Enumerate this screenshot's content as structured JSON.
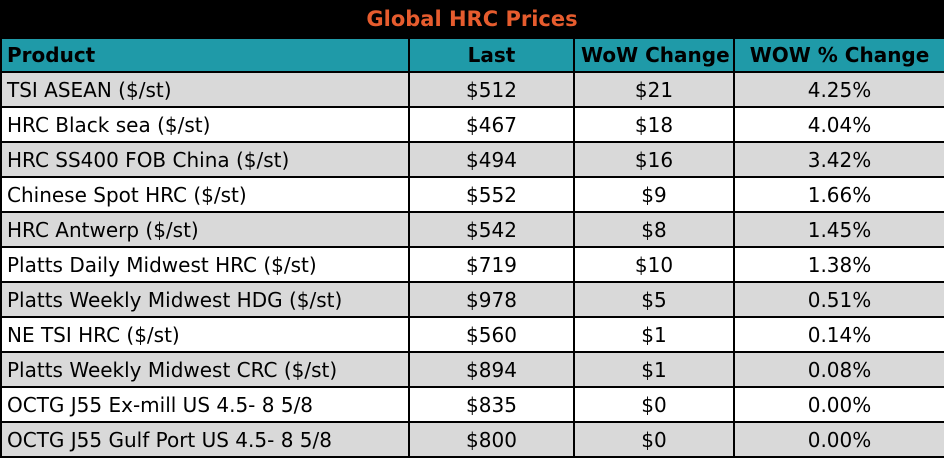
{
  "table": {
    "title": "Global HRC Prices",
    "headers": [
      "Product",
      "Last",
      "WoW Change",
      "WOW % Change"
    ],
    "rows": [
      [
        "TSI ASEAN ($/st)",
        "$512",
        "$21",
        "4.25%"
      ],
      [
        "HRC Black sea ($/st)",
        "$467",
        "$18",
        "4.04%"
      ],
      [
        "HRC SS400 FOB China ($/st)",
        "$494",
        "$16",
        "3.42%"
      ],
      [
        "Chinese Spot HRC ($/st)",
        "$552",
        "$9",
        "1.66%"
      ],
      [
        "HRC Antwerp ($/st)",
        "$542",
        "$8",
        "1.45%"
      ],
      [
        "Platts Daily Midwest HRC ($/st)",
        "$719",
        "$10",
        "1.38%"
      ],
      [
        "Platts Weekly Midwest HDG ($/st)",
        "$978",
        "$5",
        "0.51%"
      ],
      [
        "NE TSI HRC ($/st)",
        "$560",
        "$1",
        "0.14%"
      ],
      [
        "Platts Weekly Midwest CRC ($/st)",
        "$894",
        "$1",
        "0.08%"
      ],
      [
        "OCTG J55 Ex-mill US 4.5- 8 5/8",
        "$835",
        "$0",
        "0.00%"
      ],
      [
        "OCTG J55 Gulf Port US 4.5- 8 5/8",
        "$800",
        "$0",
        "0.00%"
      ]
    ]
  },
  "colors": {
    "title_text": "#e65c2e",
    "title_bg": "#000000",
    "header_bg": "#1f9aa8",
    "row_shaded": "#d9d9d9",
    "row_plain": "#ffffff"
  }
}
